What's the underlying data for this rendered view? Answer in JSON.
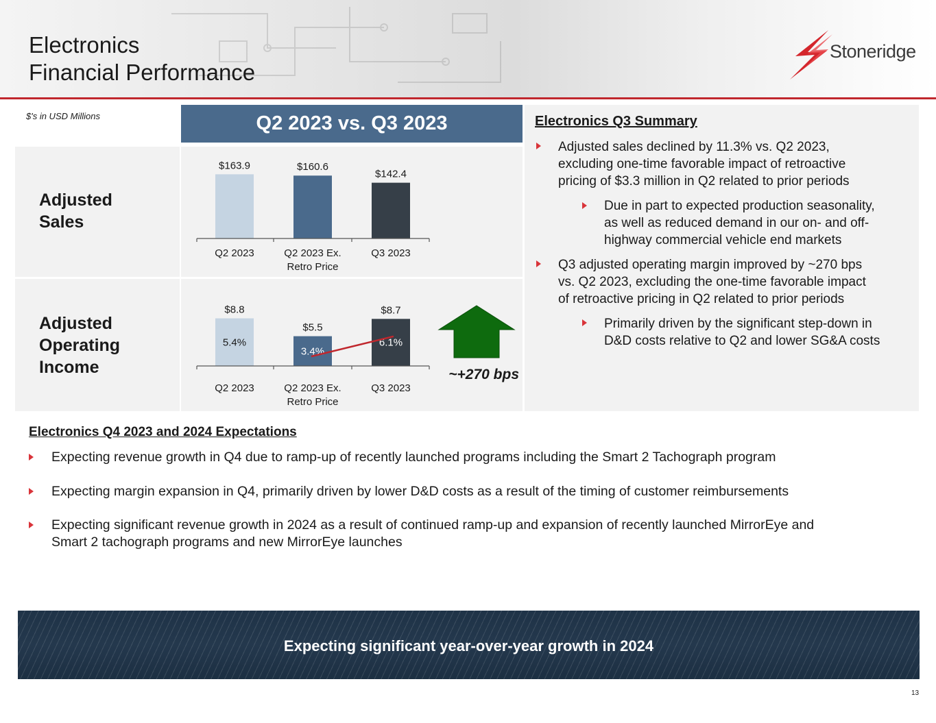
{
  "header": {
    "title_line1": "Electronics",
    "title_line2": "Financial Performance",
    "logo_text": "Stoneridge",
    "accent_color": "#c0272d"
  },
  "units_note": "$'s in USD Millions",
  "period_header": "Q2 2023 vs. Q3 2023",
  "rows": {
    "sales_label_line1": "Adjusted",
    "sales_label_line2": "Sales",
    "oi_label_line1": "Adjusted",
    "oi_label_line2": "Operating",
    "oi_label_line3": "Income"
  },
  "chart_data": [
    {
      "type": "bar",
      "title": "Adjusted Sales",
      "categories": [
        "Q2 2023",
        "Q2 2023 Ex. Retro Price",
        "Q3 2023"
      ],
      "category_lines": [
        [
          "Q2 2023"
        ],
        [
          "Q2 2023 Ex.",
          "Retro Price"
        ],
        [
          "Q3 2023"
        ]
      ],
      "values": [
        163.9,
        160.6,
        142.4
      ],
      "value_labels": [
        "$163.9",
        "$160.6",
        "$142.4"
      ],
      "colors": [
        "#c5d4e2",
        "#4a6a8c",
        "#363f48"
      ],
      "ylim": [
        0,
        175
      ],
      "xlabel": "",
      "ylabel": ""
    },
    {
      "type": "bar",
      "title": "Adjusted Operating Income",
      "categories": [
        "Q2 2023",
        "Q2 2023 Ex. Retro Price",
        "Q3 2023"
      ],
      "category_lines": [
        [
          "Q2 2023"
        ],
        [
          "Q2 2023 Ex.",
          "Retro Price"
        ],
        [
          "Q3 2023"
        ]
      ],
      "values": [
        8.8,
        5.5,
        8.7
      ],
      "value_labels": [
        "$8.8",
        "$5.5",
        "$8.7"
      ],
      "margins": [
        5.4,
        3.4,
        6.1
      ],
      "margin_labels": [
        "5.4%",
        "3.4%",
        "6.1%"
      ],
      "colors": [
        "#c5d4e2",
        "#4a6a8c",
        "#363f48"
      ],
      "trend_line_color": "#c0272d",
      "ylim": [
        0,
        9.5
      ],
      "annotation": "~+270 bps",
      "arrow_color": "#0e6b0e",
      "xlabel": "",
      "ylabel": ""
    }
  ],
  "summary": {
    "title": "Electronics Q3 Summary",
    "bullet1": [
      "Adjusted sales declined by 11.3% vs. Q2 2023,",
      "excluding one-time favorable impact of retroactive",
      "pricing of $3.3 million in Q2 related to prior periods"
    ],
    "sub1": [
      "Due in part to expected production seasonality,",
      "as well as reduced demand in our on- and off-",
      "highway commercial vehicle end markets"
    ],
    "bullet2": [
      "Q3 adjusted operating margin improved by ~270 bps",
      "vs. Q2 2023, excluding the one-time favorable impact",
      "of retroactive pricing in Q2 related to prior periods"
    ],
    "sub2": [
      "Primarily driven by the significant step-down in",
      "D&D costs relative to Q2 and lower SG&A costs"
    ]
  },
  "expectations": {
    "title": "Electronics Q4 2023 and 2024 Expectations",
    "item1": "Expecting revenue growth in Q4 due to ramp-up of recently launched programs including the Smart 2 Tachograph program",
    "item2": "Expecting margin expansion in Q4, primarily driven by lower D&D costs as a result of the timing of customer reimbursements",
    "item3_line1": "Expecting significant revenue growth in 2024 as a result of continued ramp-up and expansion of recently launched MirrorEye and",
    "item3_line2": "Smart 2 tachograph programs and new MirrorEye launches"
  },
  "banner": "Expecting significant year-over-year growth in 2024",
  "page_number": "13"
}
